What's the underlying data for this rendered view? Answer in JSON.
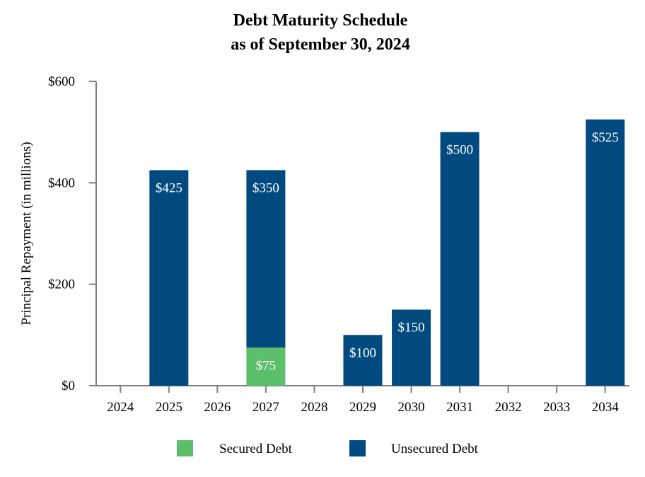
{
  "chart_data": {
    "type": "bar",
    "stacked": true,
    "title": "Debt Maturity Schedule",
    "subtitle": "as of September 30, 2024",
    "xlabel": "",
    "ylabel": "Principal Repayment (in millions)",
    "ylim": [
      0,
      600
    ],
    "yticks": [
      0,
      200,
      400,
      600
    ],
    "ytick_labels": [
      "$0",
      "$200",
      "$400",
      "$600"
    ],
    "categories": [
      "2024",
      "2025",
      "2026",
      "2027",
      "2028",
      "2029",
      "2030",
      "2031",
      "2032",
      "2033",
      "2034"
    ],
    "series": [
      {
        "name": "Secured Debt",
        "color": "#5cbf6a",
        "values": [
          0,
          0,
          0,
          75,
          0,
          0,
          0,
          0,
          0,
          0,
          0
        ],
        "labels": [
          "",
          "",
          "",
          "$75",
          "",
          "",
          "",
          "",
          "",
          "",
          ""
        ]
      },
      {
        "name": "Unsecured Debt",
        "color": "#004a7f",
        "values": [
          0,
          425,
          0,
          350,
          0,
          100,
          150,
          500,
          0,
          0,
          525
        ],
        "labels": [
          "",
          "$425",
          "",
          "$350",
          "",
          "$100",
          "$150",
          "$500",
          "",
          "",
          "$525"
        ]
      }
    ],
    "legend": [
      "Secured Debt",
      "Unsecured Debt"
    ],
    "legend_position": "bottom-center",
    "grid": false
  },
  "colors": {
    "axis": "#7f7f7f",
    "label_on_bar": "#ffffff"
  }
}
